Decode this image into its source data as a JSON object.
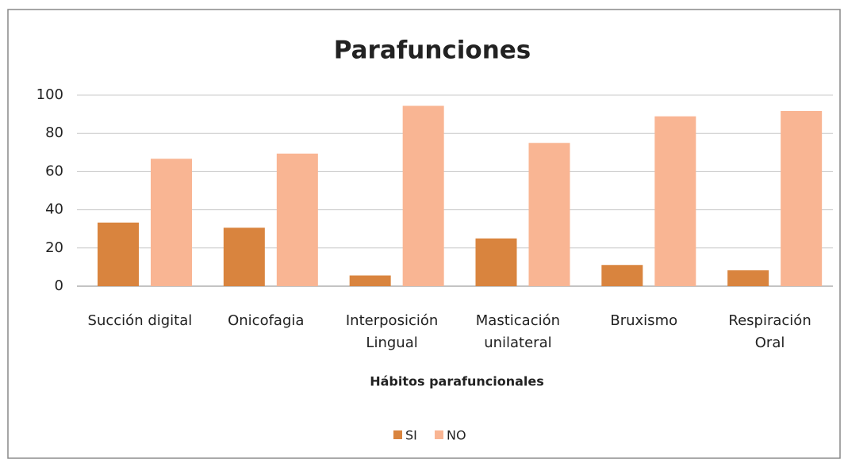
{
  "chart_data": {
    "type": "bar",
    "title": "Parafunciones",
    "x_label": "Hábitos parafuncionales",
    "categories": [
      "Succión digital",
      "Onicofagia",
      "Interposición\nLingual",
      "Masticación\nunilateral",
      "Bruxismo",
      "Respiración\nOral"
    ],
    "series": [
      {
        "name": "SI",
        "color": "#d9843e",
        "values": [
          33.3,
          30.6,
          5.6,
          25,
          11.1,
          8.3
        ]
      },
      {
        "name": "NO",
        "color": "#f9b593",
        "values": [
          66.7,
          69.4,
          94.4,
          75,
          88.9,
          91.7
        ]
      }
    ],
    "ylim": [
      0,
      100
    ],
    "yticks": [
      0,
      20,
      40,
      60,
      80,
      100
    ],
    "grid": true,
    "legend": "bottom"
  }
}
